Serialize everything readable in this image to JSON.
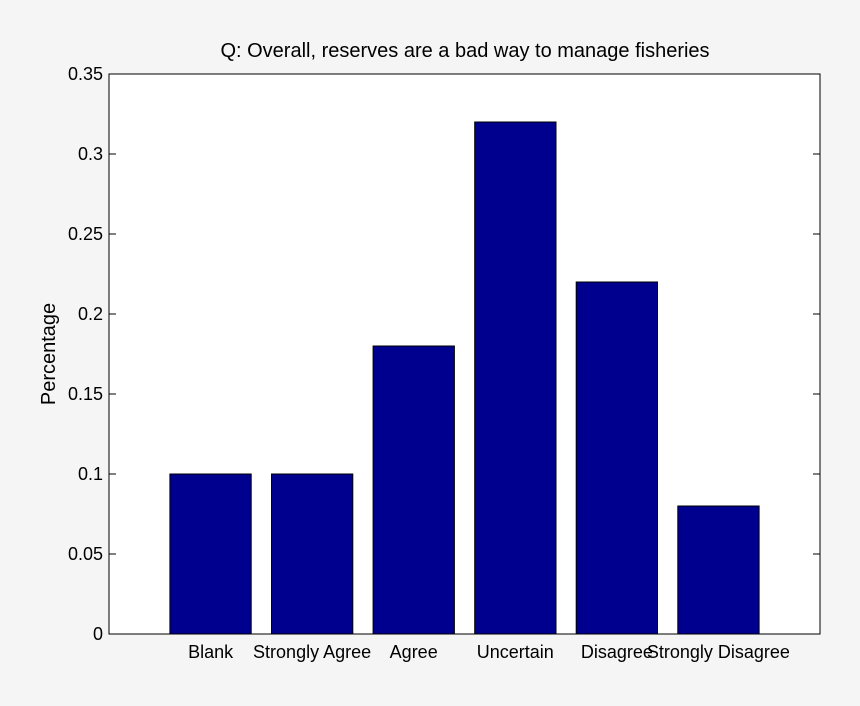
{
  "chart_data": {
    "type": "bar",
    "title": "Q: Overall, reserves are a bad way to manage fisheries",
    "xlabel": "",
    "ylabel": "Percentage",
    "categories": [
      "Blank",
      "Strongly Agree",
      "Agree",
      "Uncertain",
      "Disagree",
      "Strongly Disagree"
    ],
    "values": [
      0.1,
      0.1,
      0.18,
      0.32,
      0.22,
      0.08
    ],
    "ylim": [
      0,
      0.35
    ],
    "yticks": [
      0,
      0.05,
      0.1,
      0.15,
      0.2,
      0.25,
      0.3,
      0.35
    ],
    "ytick_labels": [
      "0",
      "0.05",
      "0.1",
      "0.15",
      "0.2",
      "0.25",
      "0.3",
      "0.35"
    ],
    "grid": false,
    "legend": "none",
    "colors": {
      "bar": "#00008f",
      "background": "#f5f5f5",
      "plot_area": "#ffffff",
      "axis": "#000000"
    }
  }
}
